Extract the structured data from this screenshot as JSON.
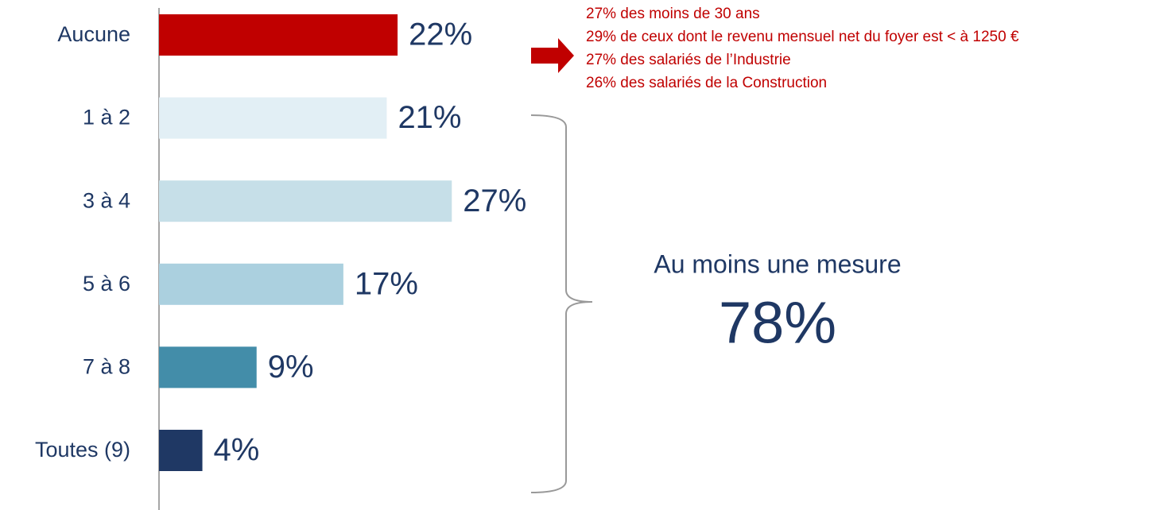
{
  "chart_data": {
    "type": "bar",
    "orientation": "horizontal",
    "categories": [
      "Aucune",
      "1 à 2",
      "3 à 4",
      "5 à 6",
      "7 à 8",
      "Toutes (9)"
    ],
    "values": [
      22,
      21,
      27,
      17,
      9,
      4
    ],
    "value_labels": [
      "22%",
      "21%",
      "27%",
      "17%",
      "9%",
      "4%"
    ],
    "colors": [
      "#c00000",
      "#e2eff5",
      "#c6dfe8",
      "#abd0df",
      "#438da9",
      "#1f3864"
    ],
    "xlim": [
      0,
      100
    ],
    "annotations": [
      "27% des moins de 30 ans",
      "29% de ceux dont le revenu mensuel net du foyer est < à 1250 €",
      "27% des salariés de l’Industrie",
      "26% des salariés de la Construction"
    ],
    "summary": {
      "label": "Au moins une mesure",
      "value": "78%"
    }
  }
}
